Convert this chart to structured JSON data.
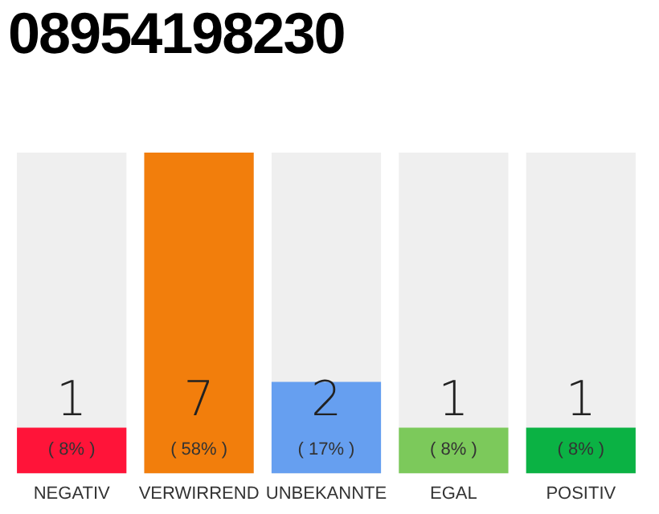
{
  "chart_data": {
    "type": "bar",
    "title": "08954198230",
    "categories": [
      "NEGATIV",
      "VERWIRREND",
      "UNBEKANNTE",
      "EGAL",
      "POSITIV"
    ],
    "values": [
      1,
      7,
      2,
      1,
      1
    ],
    "colors": [
      "#ff1439",
      "#f27e0c",
      "#669ff0",
      "#7cc95b",
      "#0bb244"
    ],
    "value_labels": [
      "1",
      "7",
      "2",
      "1",
      "1"
    ],
    "data_labels": true,
    "annotations": [
      "( 8% )",
      "( 58% )",
      "( 17% )",
      "( 8% )",
      "( 8% )"
    ],
    "grid": false,
    "legend": false
  }
}
